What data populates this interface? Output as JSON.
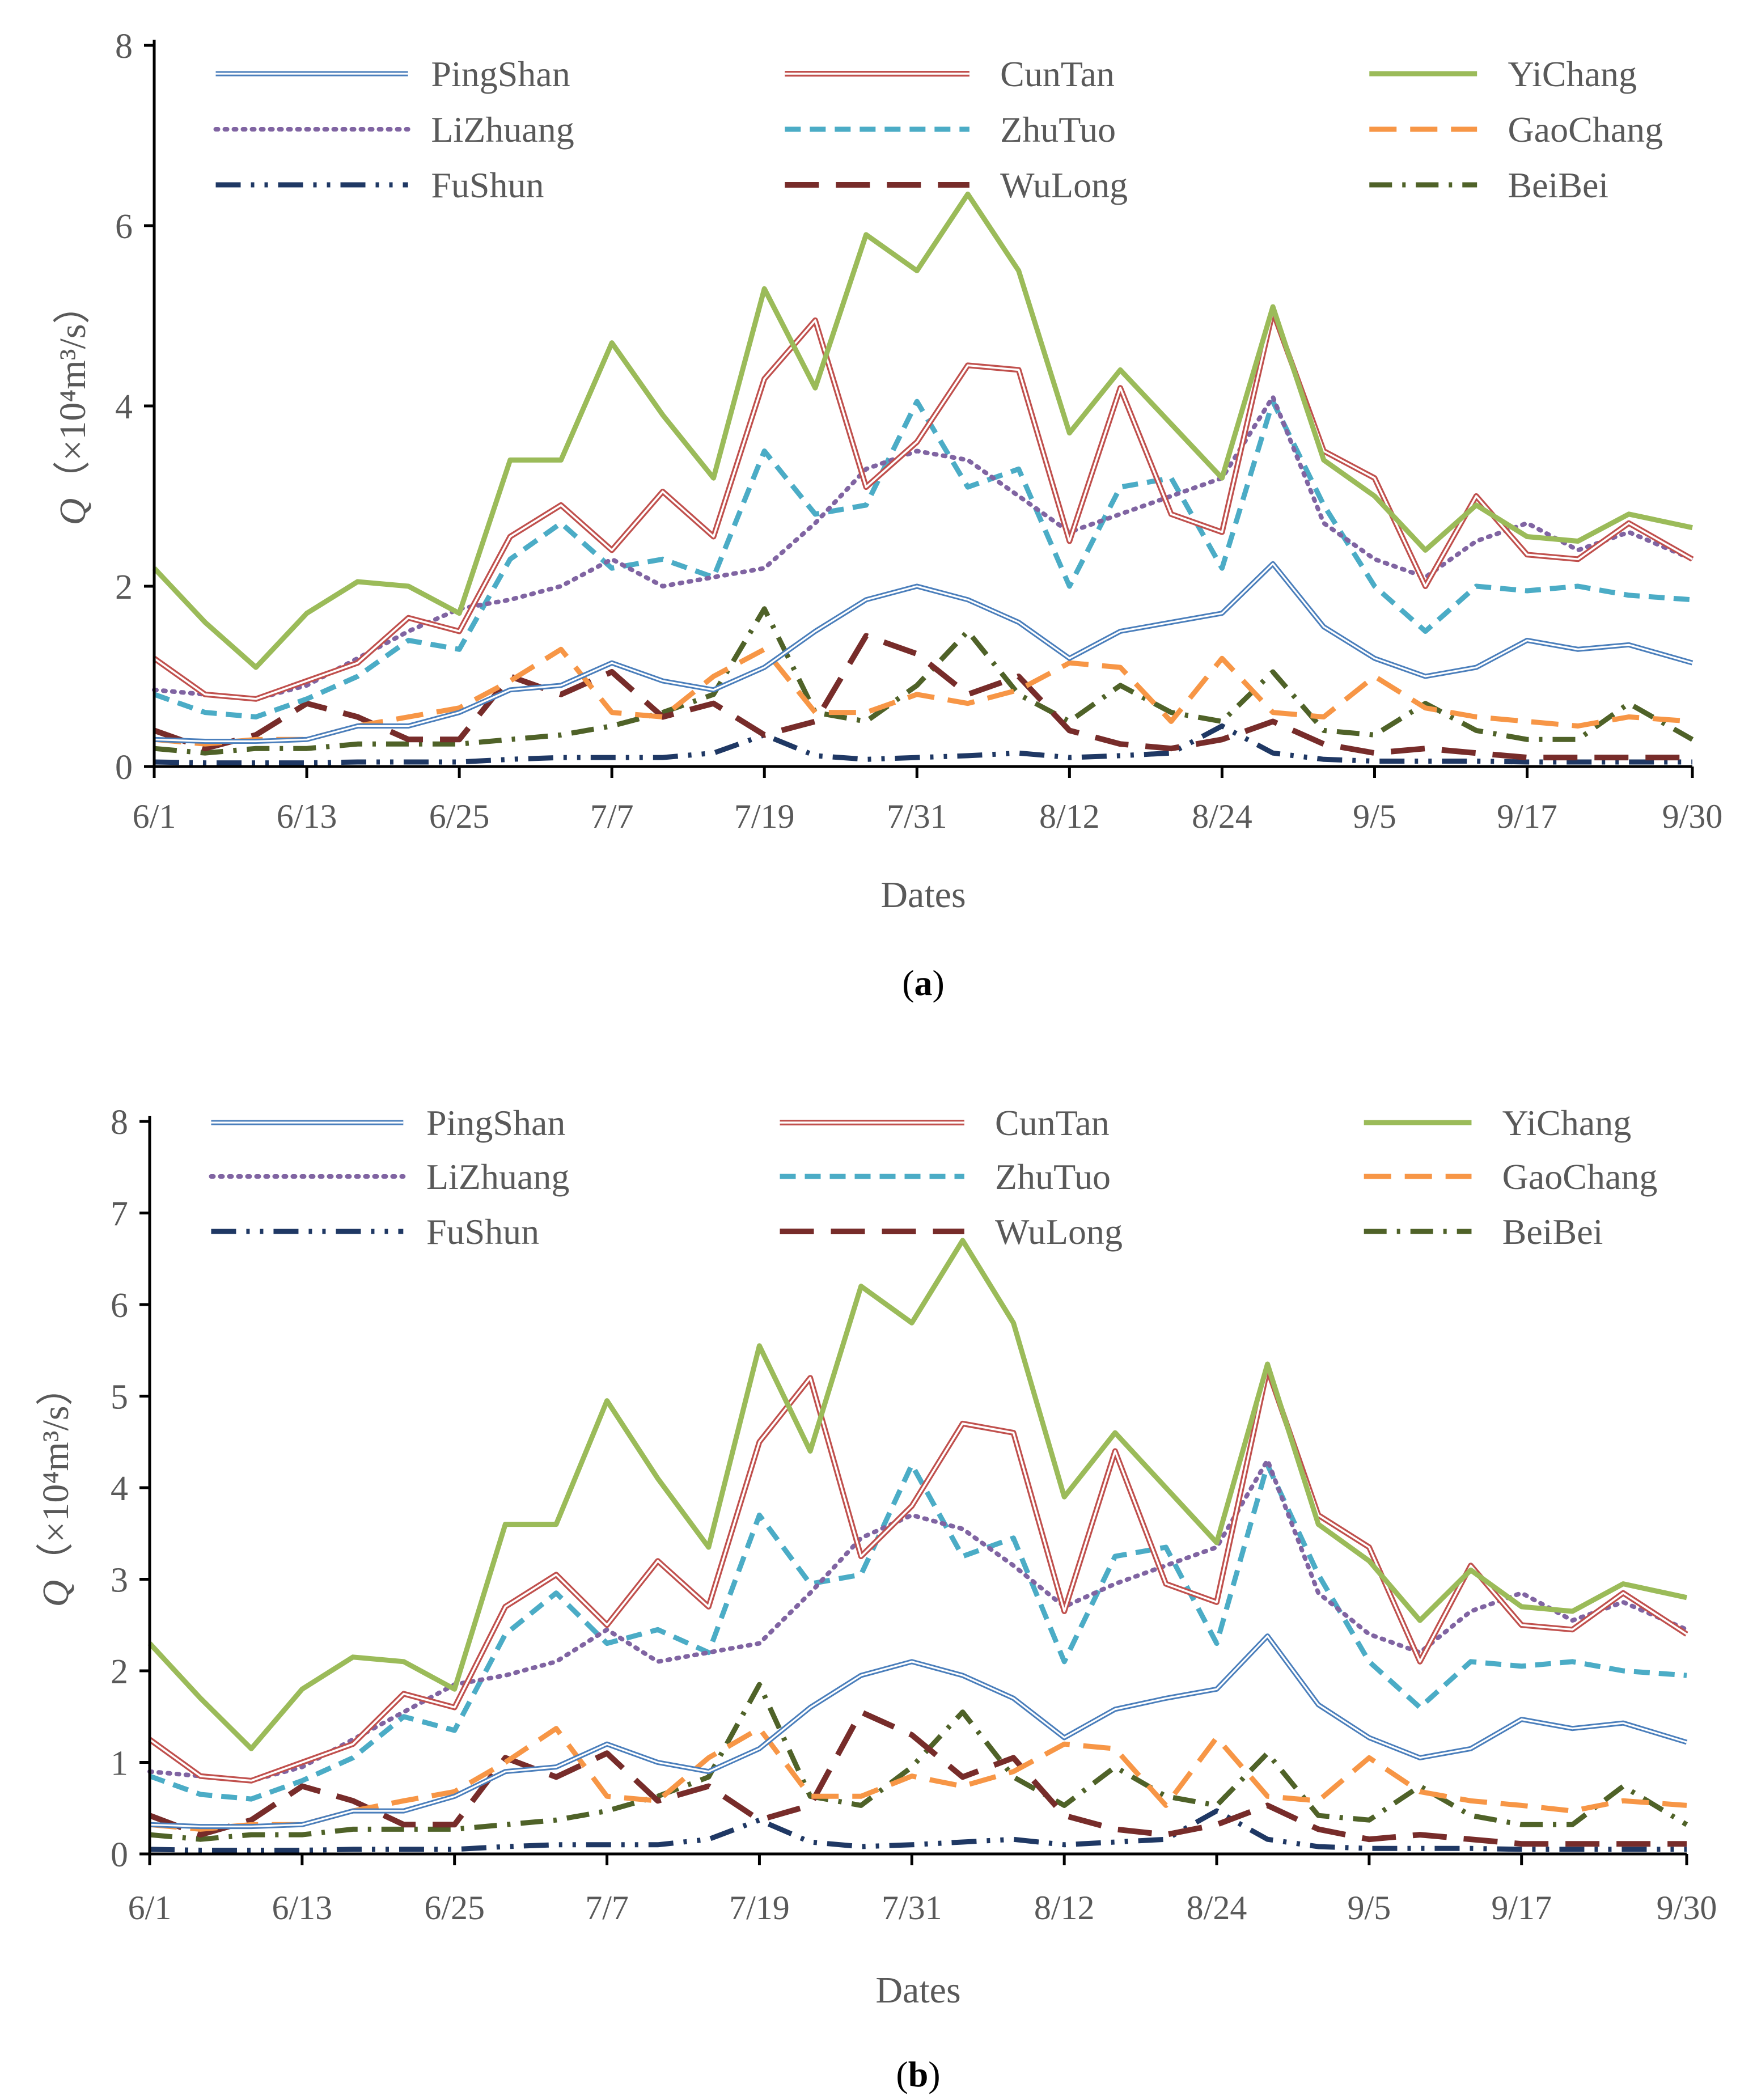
{
  "charts": [
    {
      "caption_letter": "a",
      "yticks": [
        0,
        2,
        4,
        6,
        8
      ],
      "ylim": [
        0,
        8
      ]
    },
    {
      "caption_letter": "b",
      "yticks": [
        0,
        1,
        2,
        3,
        4,
        5,
        6,
        7,
        8
      ],
      "ylim": [
        0,
        8
      ]
    }
  ],
  "xlabel": "Dates",
  "ylabel_main": "Q",
  "ylabel_rest": "（×10⁴m³/s）",
  "xticks": [
    {
      "label": "6/1",
      "day": 0
    },
    {
      "label": "6/13",
      "day": 12
    },
    {
      "label": "6/25",
      "day": 24
    },
    {
      "label": "7/7",
      "day": 36
    },
    {
      "label": "7/19",
      "day": 48
    },
    {
      "label": "7/31",
      "day": 60
    },
    {
      "label": "8/12",
      "day": 72
    },
    {
      "label": "8/24",
      "day": 84
    },
    {
      "label": "9/5",
      "day": 96
    },
    {
      "label": "9/17",
      "day": 108
    },
    {
      "label": "9/30",
      "day": 121
    }
  ],
  "legend": [
    {
      "name": "PingShan",
      "color": "#4a7ebb",
      "style": "solid-double"
    },
    {
      "name": "CunTan",
      "color": "#c0504d",
      "style": "double"
    },
    {
      "name": "YiChang",
      "color": "#9bbb59",
      "style": "solid"
    },
    {
      "name": "LiZhuang",
      "color": "#8064a2",
      "style": "dot"
    },
    {
      "name": "ZhuTuo",
      "color": "#4bacc6",
      "style": "dash"
    },
    {
      "name": "GaoChang",
      "color": "#f79646",
      "style": "longdash"
    },
    {
      "name": "FuShun",
      "color": "#1f3864",
      "style": "dashdotdot"
    },
    {
      "name": "WuLong",
      "color": "#772c2a",
      "style": "longdash-thick"
    },
    {
      "name": "BeiBei",
      "color": "#4f6228",
      "style": "dashdot"
    }
  ],
  "chart_data": [
    {
      "type": "line",
      "title": "(a)",
      "xlabel": "Dates",
      "ylabel": "Q（×10⁴m³/s）",
      "ylim": [
        0,
        8
      ],
      "x_days": [
        0,
        4,
        8,
        12,
        16,
        20,
        24,
        28,
        32,
        36,
        40,
        44,
        48,
        52,
        56,
        60,
        64,
        68,
        72,
        76,
        80,
        84,
        88,
        92,
        96,
        100,
        104,
        108,
        112,
        116,
        121
      ],
      "series": [
        {
          "name": "YiChang",
          "values": [
            2.2,
            1.6,
            1.1,
            1.7,
            2.05,
            2.0,
            1.7,
            3.4,
            3.4,
            4.7,
            3.9,
            3.2,
            5.3,
            4.2,
            5.9,
            5.5,
            6.35,
            5.5,
            3.7,
            4.4,
            3.8,
            3.2,
            5.1,
            3.4,
            3.0,
            2.4,
            2.9,
            2.55,
            2.5,
            2.8,
            2.65
          ]
        },
        {
          "name": "CunTan",
          "values": [
            1.2,
            0.8,
            0.75,
            0.95,
            1.15,
            1.65,
            1.5,
            2.55,
            2.9,
            2.4,
            3.05,
            2.55,
            4.3,
            4.95,
            3.1,
            3.6,
            4.45,
            4.4,
            2.5,
            4.2,
            2.8,
            2.6,
            5.05,
            3.5,
            3.2,
            2.0,
            3.0,
            2.35,
            2.3,
            2.7,
            2.3
          ]
        },
        {
          "name": "LiZhuang",
          "values": [
            0.85,
            0.8,
            0.75,
            0.9,
            1.2,
            1.5,
            1.75,
            1.85,
            2.0,
            2.3,
            2.0,
            2.1,
            2.2,
            2.7,
            3.3,
            3.5,
            3.4,
            3.0,
            2.6,
            2.8,
            3.0,
            3.2,
            4.1,
            2.7,
            2.3,
            2.1,
            2.5,
            2.7,
            2.4,
            2.6,
            2.3
          ]
        },
        {
          "name": "ZhuTuo",
          "values": [
            0.8,
            0.6,
            0.55,
            0.75,
            1.0,
            1.4,
            1.3,
            2.3,
            2.7,
            2.2,
            2.3,
            2.1,
            3.5,
            2.8,
            2.9,
            4.05,
            3.1,
            3.3,
            2.0,
            3.1,
            3.2,
            2.2,
            4.05,
            2.9,
            2.0,
            1.5,
            2.0,
            1.95,
            2.0,
            1.9,
            1.85
          ]
        },
        {
          "name": "PingShan",
          "values": [
            0.3,
            0.28,
            0.28,
            0.3,
            0.45,
            0.45,
            0.6,
            0.85,
            0.9,
            1.15,
            0.95,
            0.85,
            1.1,
            1.5,
            1.85,
            2.0,
            1.85,
            1.6,
            1.2,
            1.5,
            1.6,
            1.7,
            2.25,
            1.55,
            1.2,
            1.0,
            1.1,
            1.4,
            1.3,
            1.35,
            1.15
          ]
        },
        {
          "name": "GaoChang",
          "values": [
            0.3,
            0.25,
            0.3,
            0.3,
            0.45,
            0.55,
            0.65,
            0.95,
            1.3,
            0.6,
            0.55,
            1.0,
            1.3,
            0.6,
            0.6,
            0.8,
            0.7,
            0.85,
            1.15,
            1.1,
            0.5,
            1.2,
            0.6,
            0.55,
            1.0,
            0.65,
            0.55,
            0.5,
            0.45,
            0.55,
            0.5
          ]
        },
        {
          "name": "WuLong",
          "values": [
            0.4,
            0.2,
            0.35,
            0.7,
            0.55,
            0.3,
            0.3,
            1.0,
            0.8,
            1.05,
            0.55,
            0.7,
            0.35,
            0.5,
            1.45,
            1.25,
            0.8,
            1.0,
            0.4,
            0.25,
            0.2,
            0.3,
            0.5,
            0.25,
            0.15,
            0.2,
            0.15,
            0.1,
            0.1,
            0.1,
            0.1
          ]
        },
        {
          "name": "BeiBei",
          "values": [
            0.2,
            0.15,
            0.2,
            0.2,
            0.25,
            0.25,
            0.25,
            0.3,
            0.35,
            0.45,
            0.6,
            0.8,
            1.75,
            0.6,
            0.5,
            0.9,
            1.5,
            0.8,
            0.5,
            0.9,
            0.6,
            0.5,
            1.05,
            0.4,
            0.35,
            0.7,
            0.4,
            0.3,
            0.3,
            0.7,
            0.3
          ]
        },
        {
          "name": "FuShun",
          "values": [
            0.05,
            0.04,
            0.04,
            0.04,
            0.05,
            0.05,
            0.05,
            0.08,
            0.1,
            0.1,
            0.1,
            0.15,
            0.35,
            0.12,
            0.08,
            0.1,
            0.12,
            0.15,
            0.1,
            0.12,
            0.15,
            0.45,
            0.15,
            0.08,
            0.06,
            0.06,
            0.06,
            0.05,
            0.05,
            0.05,
            0.05
          ]
        }
      ]
    },
    {
      "type": "line",
      "title": "(b)",
      "xlabel": "Dates",
      "ylabel": "Q（×10⁴m³/s）",
      "ylim": [
        0,
        8
      ],
      "x_days": [
        0,
        4,
        8,
        12,
        16,
        20,
        24,
        28,
        32,
        36,
        40,
        44,
        48,
        52,
        56,
        60,
        64,
        68,
        72,
        76,
        80,
        84,
        88,
        92,
        96,
        100,
        104,
        108,
        112,
        116,
        121
      ],
      "series": [
        {
          "name": "YiChang",
          "values": [
            2.3,
            1.7,
            1.15,
            1.8,
            2.15,
            2.1,
            1.8,
            3.6,
            3.6,
            4.95,
            4.1,
            3.35,
            5.55,
            4.4,
            6.2,
            5.8,
            6.7,
            5.8,
            3.9,
            4.6,
            4.0,
            3.4,
            5.35,
            3.6,
            3.2,
            2.55,
            3.1,
            2.7,
            2.65,
            2.95,
            2.8
          ]
        },
        {
          "name": "CunTan",
          "values": [
            1.25,
            0.85,
            0.8,
            1.0,
            1.2,
            1.75,
            1.6,
            2.7,
            3.05,
            2.5,
            3.2,
            2.7,
            4.5,
            5.2,
            3.25,
            3.8,
            4.7,
            4.6,
            2.65,
            4.4,
            2.95,
            2.75,
            5.3,
            3.7,
            3.35,
            2.1,
            3.15,
            2.5,
            2.45,
            2.85,
            2.4
          ]
        },
        {
          "name": "LiZhuang",
          "values": [
            0.9,
            0.85,
            0.8,
            0.95,
            1.25,
            1.55,
            1.85,
            1.95,
            2.1,
            2.45,
            2.1,
            2.2,
            2.3,
            2.85,
            3.45,
            3.7,
            3.55,
            3.15,
            2.7,
            2.95,
            3.15,
            3.35,
            4.3,
            2.85,
            2.4,
            2.2,
            2.65,
            2.85,
            2.55,
            2.75,
            2.45
          ]
        },
        {
          "name": "ZhuTuo",
          "values": [
            0.85,
            0.65,
            0.6,
            0.8,
            1.05,
            1.5,
            1.35,
            2.4,
            2.85,
            2.3,
            2.45,
            2.2,
            3.7,
            2.95,
            3.05,
            4.25,
            3.25,
            3.45,
            2.1,
            3.25,
            3.35,
            2.3,
            4.25,
            3.05,
            2.1,
            1.6,
            2.1,
            2.05,
            2.1,
            2.0,
            1.95
          ]
        },
        {
          "name": "PingShan",
          "values": [
            0.32,
            0.3,
            0.3,
            0.32,
            0.47,
            0.47,
            0.63,
            0.9,
            0.95,
            1.2,
            1.0,
            0.9,
            1.15,
            1.6,
            1.95,
            2.1,
            1.95,
            1.7,
            1.27,
            1.58,
            1.7,
            1.8,
            2.38,
            1.63,
            1.27,
            1.05,
            1.15,
            1.47,
            1.37,
            1.43,
            1.22
          ]
        },
        {
          "name": "GaoChang",
          "values": [
            0.32,
            0.27,
            0.32,
            0.32,
            0.47,
            0.58,
            0.68,
            1.0,
            1.37,
            0.63,
            0.58,
            1.05,
            1.37,
            0.63,
            0.63,
            0.85,
            0.74,
            0.9,
            1.2,
            1.15,
            0.53,
            1.27,
            0.63,
            0.58,
            1.05,
            0.68,
            0.58,
            0.53,
            0.47,
            0.58,
            0.53
          ]
        },
        {
          "name": "WuLong",
          "values": [
            0.42,
            0.21,
            0.37,
            0.74,
            0.58,
            0.32,
            0.32,
            1.05,
            0.84,
            1.1,
            0.58,
            0.74,
            0.37,
            0.53,
            1.55,
            1.3,
            0.84,
            1.05,
            0.42,
            0.27,
            0.21,
            0.32,
            0.53,
            0.27,
            0.16,
            0.21,
            0.16,
            0.11,
            0.11,
            0.11,
            0.11
          ]
        },
        {
          "name": "BeiBei",
          "values": [
            0.21,
            0.16,
            0.21,
            0.21,
            0.27,
            0.27,
            0.27,
            0.32,
            0.37,
            0.47,
            0.63,
            0.84,
            1.85,
            0.63,
            0.53,
            0.95,
            1.55,
            0.84,
            0.53,
            0.95,
            0.63,
            0.53,
            1.1,
            0.42,
            0.37,
            0.74,
            0.42,
            0.32,
            0.32,
            0.74,
            0.32
          ]
        },
        {
          "name": "FuShun",
          "values": [
            0.05,
            0.04,
            0.04,
            0.04,
            0.05,
            0.05,
            0.05,
            0.08,
            0.1,
            0.1,
            0.1,
            0.16,
            0.37,
            0.13,
            0.08,
            0.1,
            0.13,
            0.16,
            0.1,
            0.13,
            0.16,
            0.47,
            0.16,
            0.08,
            0.06,
            0.06,
            0.06,
            0.05,
            0.05,
            0.05,
            0.05
          ]
        }
      ]
    }
  ]
}
